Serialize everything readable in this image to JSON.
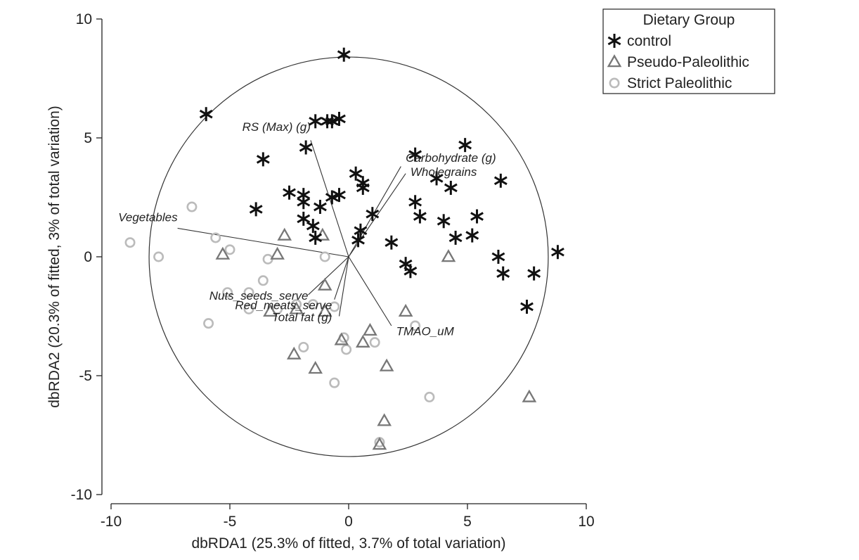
{
  "chart_data": {
    "type": "scatter",
    "title": "",
    "xlabel": "dbRDA1 (25.3% of fitted, 3.7% of total variation)",
    "ylabel": "dbRDA2 (20.3% of fitted, 3% of total variation)",
    "xlim": [
      -10,
      10
    ],
    "ylim": [
      -10,
      10
    ],
    "xticks": [
      "-10",
      "-5",
      "0",
      "5",
      "10"
    ],
    "yticks": [
      "-10",
      "-5",
      "0",
      "5",
      "10"
    ],
    "grid": false,
    "legend": {
      "title": "Dietary Group",
      "placement": "top-right-outside",
      "entries": [
        "control",
        "Pseudo-Paleolithic",
        "Strict Paleolithic"
      ]
    },
    "circle": {
      "center": [
        0,
        0
      ],
      "radius": 8.4
    },
    "series": [
      {
        "name": "control",
        "marker": "asterisk",
        "color": "#111111",
        "points": [
          [
            -0.2,
            8.5
          ],
          [
            -6.0,
            6.0
          ],
          [
            -1.4,
            5.7
          ],
          [
            -0.9,
            5.7
          ],
          [
            -0.7,
            5.7
          ],
          [
            -0.4,
            5.8
          ],
          [
            -1.8,
            4.6
          ],
          [
            -3.6,
            4.1
          ],
          [
            2.8,
            4.3
          ],
          [
            4.9,
            4.7
          ],
          [
            0.3,
            3.5
          ],
          [
            0.6,
            3.1
          ],
          [
            0.6,
            2.9
          ],
          [
            3.7,
            3.3
          ],
          [
            4.3,
            2.9
          ],
          [
            6.4,
            3.2
          ],
          [
            -2.5,
            2.7
          ],
          [
            -1.9,
            2.6
          ],
          [
            -0.7,
            2.5
          ],
          [
            -0.4,
            2.6
          ],
          [
            -3.9,
            2.0
          ],
          [
            -1.9,
            2.3
          ],
          [
            -1.2,
            2.1
          ],
          [
            2.8,
            2.3
          ],
          [
            3.0,
            1.7
          ],
          [
            1.0,
            1.8
          ],
          [
            -1.9,
            1.6
          ],
          [
            -1.5,
            1.3
          ],
          [
            0.5,
            1.1
          ],
          [
            0.4,
            0.7
          ],
          [
            -1.4,
            0.8
          ],
          [
            4.0,
            1.5
          ],
          [
            5.4,
            1.7
          ],
          [
            4.5,
            0.8
          ],
          [
            5.2,
            0.9
          ],
          [
            1.8,
            0.6
          ],
          [
            6.3,
            0.0
          ],
          [
            8.8,
            0.2
          ],
          [
            2.4,
            -0.3
          ],
          [
            2.6,
            -0.6
          ],
          [
            6.5,
            -0.7
          ],
          [
            7.8,
            -0.7
          ],
          [
            7.5,
            -2.1
          ]
        ]
      },
      {
        "name": "Pseudo-Paleolithic",
        "marker": "triangle",
        "color": "#777777",
        "points": [
          [
            -2.7,
            0.9
          ],
          [
            -1.1,
            0.9
          ],
          [
            -5.3,
            0.1
          ],
          [
            -3.0,
            0.1
          ],
          [
            4.2,
            0.0
          ],
          [
            -1.0,
            -1.2
          ],
          [
            -3.3,
            -2.3
          ],
          [
            -2.2,
            -2.2
          ],
          [
            -1.0,
            -2.3
          ],
          [
            2.4,
            -2.3
          ],
          [
            0.9,
            -3.1
          ],
          [
            -0.3,
            -3.5
          ],
          [
            0.6,
            -3.6
          ],
          [
            -2.3,
            -4.1
          ],
          [
            -1.4,
            -4.7
          ],
          [
            1.6,
            -4.6
          ],
          [
            7.6,
            -5.9
          ],
          [
            1.5,
            -6.9
          ],
          [
            1.3,
            -7.9
          ]
        ]
      },
      {
        "name": "Strict Paleolithic",
        "marker": "circle",
        "color": "#bbbbbb",
        "points": [
          [
            -6.6,
            2.1
          ],
          [
            -9.2,
            0.6
          ],
          [
            -8.0,
            0.0
          ],
          [
            -5.6,
            0.8
          ],
          [
            -5.0,
            0.3
          ],
          [
            -3.4,
            -0.1
          ],
          [
            -1.0,
            0.0
          ],
          [
            -3.6,
            -1.0
          ],
          [
            -5.1,
            -1.5
          ],
          [
            -4.2,
            -1.5
          ],
          [
            -3.0,
            -2.2
          ],
          [
            -2.2,
            -2.0
          ],
          [
            -1.5,
            -2.0
          ],
          [
            -0.6,
            -2.1
          ],
          [
            -4.2,
            -2.2
          ],
          [
            -5.9,
            -2.8
          ],
          [
            2.8,
            -2.9
          ],
          [
            -0.2,
            -3.4
          ],
          [
            -0.1,
            -3.9
          ],
          [
            1.1,
            -3.6
          ],
          [
            -1.9,
            -3.8
          ],
          [
            -0.6,
            -5.3
          ],
          [
            3.4,
            -5.9
          ],
          [
            1.3,
            -7.8
          ]
        ]
      }
    ],
    "vectors": [
      {
        "label": "RS (Max) (g)",
        "end": [
          -1.6,
          4.9
        ],
        "label_pos": [
          -1.6,
          5.3
        ],
        "anchor": "end"
      },
      {
        "label": "Carbohydrate (g)",
        "end": [
          2.2,
          3.8
        ],
        "label_pos": [
          2.4,
          4.0
        ],
        "anchor": "start"
      },
      {
        "label": "Wholegrains",
        "end": [
          2.4,
          3.5
        ],
        "label_pos": [
          2.6,
          3.4
        ],
        "anchor": "start"
      },
      {
        "label": "Vegetables",
        "end": [
          -7.2,
          1.2
        ],
        "label_pos": [
          -7.2,
          1.5
        ],
        "anchor": "end"
      },
      {
        "label": "Nuts_seeds_serve",
        "end": [
          -1.7,
          -1.6
        ],
        "label_pos": [
          -1.7,
          -1.8
        ],
        "anchor": "end"
      },
      {
        "label": "Red_meats_serve",
        "end": [
          -0.6,
          -1.8
        ],
        "label_pos": [
          -0.7,
          -2.2
        ],
        "anchor": "end"
      },
      {
        "label": "Total fat (g)",
        "end": [
          -0.4,
          -2.5
        ],
        "label_pos": [
          -0.7,
          -2.7
        ],
        "anchor": "end"
      },
      {
        "label": "TMAO_uM",
        "end": [
          1.8,
          -2.9
        ],
        "label_pos": [
          2.0,
          -3.3
        ],
        "anchor": "start"
      }
    ]
  }
}
